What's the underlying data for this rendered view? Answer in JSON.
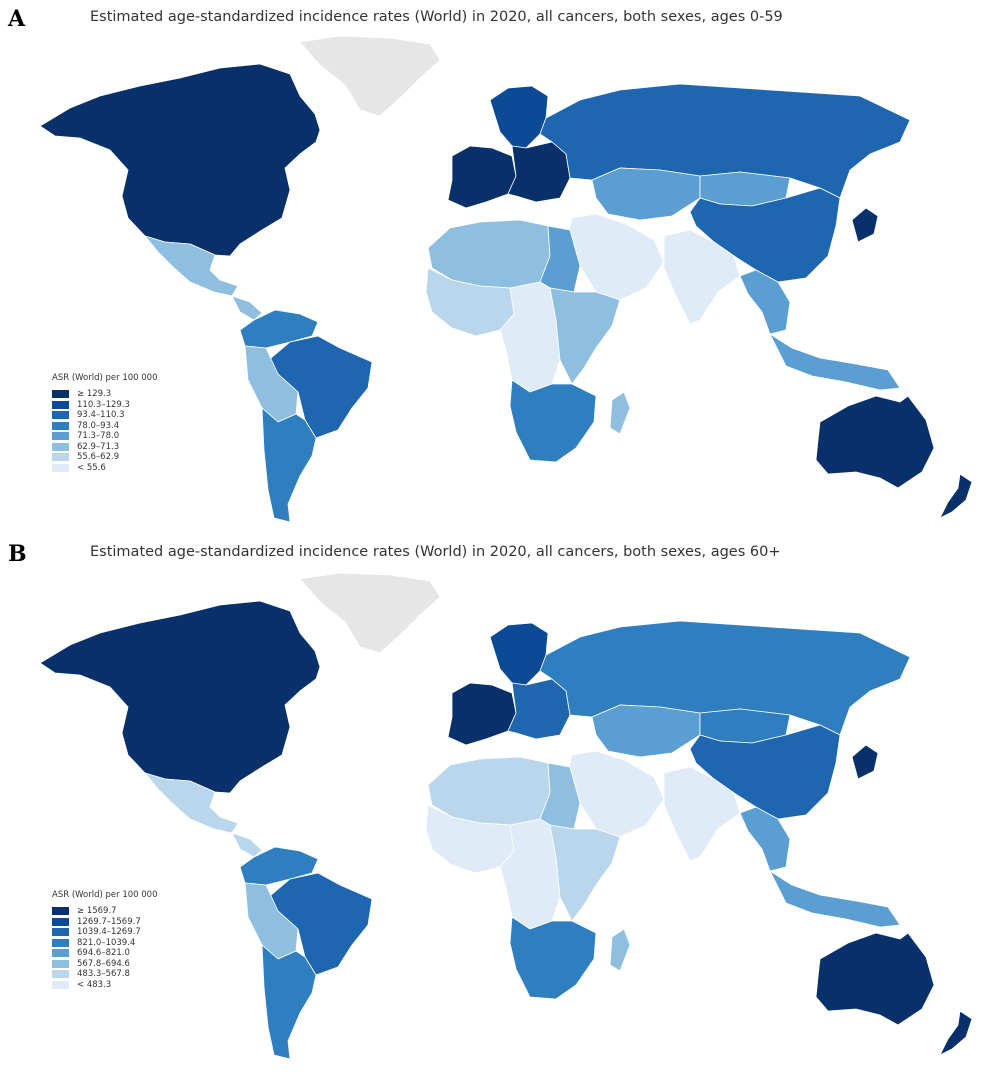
{
  "panels": [
    {
      "label": "A",
      "title": "Estimated age-standardized incidence rates (World) in 2020, all cancers, both sexes, ages 0-59",
      "legend_title": "ASR (World) per 100 000",
      "legend": [
        {
          "label": "≥ 129.3",
          "color": "#08306b"
        },
        {
          "label": "110.3–129.3",
          "color": "#0c4a95"
        },
        {
          "label": "93.4–110.3",
          "color": "#1f66b0"
        },
        {
          "label": "78.0–93.4",
          "color": "#2f7ec0"
        },
        {
          "label": "71.3–78.0",
          "color": "#5a9ed2"
        },
        {
          "label": "62.9–71.3",
          "color": "#8fbfe0"
        },
        {
          "label": "55.6–62.9",
          "color": "#bad6ed"
        },
        {
          "label": "< 55.6",
          "color": "#dfebf7"
        }
      ],
      "regions": {
        "north_america": "#08306b",
        "greenland": "#e6e6e6",
        "mexico": "#8fbfe0",
        "central_america": "#8fbfe0",
        "south_america_north": "#2f7ec0",
        "brazil": "#1f66b0",
        "bolivia": "#8fbfe0",
        "argentina": "#2f7ec0",
        "western_europe": "#08306b",
        "scandinavia": "#0c4a95",
        "eastern_europe": "#08306b",
        "russia": "#1f66b0",
        "north_africa": "#8fbfe0",
        "egypt": "#5a9ed2",
        "west_africa": "#bad6ed",
        "central_africa": "#dfebf7",
        "east_africa": "#8fbfe0",
        "southern_africa": "#2f7ec0",
        "madagascar": "#8fbfe0",
        "middle_east": "#dfebf7",
        "central_asia": "#5a9ed2",
        "mongolia": "#5a9ed2",
        "india": "#dfebf7",
        "china": "#1f66b0",
        "japan": "#08306b",
        "southeast_asia": "#5a9ed2",
        "indonesia": "#5a9ed2",
        "australia": "#08306b",
        "new_zealand": "#08306b"
      }
    },
    {
      "label": "B",
      "title": "Estimated age-standardized incidence rates (World) in 2020, all cancers, both sexes, ages 60+",
      "legend_title": "ASR (World) per 100 000",
      "legend": [
        {
          "label": "≥ 1569.7",
          "color": "#08306b"
        },
        {
          "label": "1269.7–1569.7",
          "color": "#0c4a95"
        },
        {
          "label": "1039.4–1269.7",
          "color": "#1f66b0"
        },
        {
          "label": "821.0–1039.4",
          "color": "#2f7ec0"
        },
        {
          "label": "694.6–821.0",
          "color": "#5a9ed2"
        },
        {
          "label": "567.8–694.6",
          "color": "#8fbfe0"
        },
        {
          "label": "483.3–567.8",
          "color": "#bad6ed"
        },
        {
          "label": "< 483.3",
          "color": "#dfebf7"
        }
      ],
      "regions": {
        "north_america": "#08306b",
        "greenland": "#e6e6e6",
        "mexico": "#bad6ed",
        "central_america": "#bad6ed",
        "south_america_north": "#2f7ec0",
        "brazil": "#1f66b0",
        "bolivia": "#8fbfe0",
        "argentina": "#2f7ec0",
        "western_europe": "#08306b",
        "scandinavia": "#0c4a95",
        "eastern_europe": "#1f66b0",
        "russia": "#2f7ec0",
        "north_africa": "#bad6ed",
        "egypt": "#8fbfe0",
        "west_africa": "#dfebf7",
        "central_africa": "#dfebf7",
        "east_africa": "#bad6ed",
        "southern_africa": "#2f7ec0",
        "madagascar": "#8fbfe0",
        "middle_east": "#dfebf7",
        "central_asia": "#5a9ed2",
        "mongolia": "#2f7ec0",
        "india": "#dfebf7",
        "china": "#1f66b0",
        "japan": "#08306b",
        "southeast_asia": "#5a9ed2",
        "indonesia": "#5a9ed2",
        "australia": "#08306b",
        "new_zealand": "#08306b"
      }
    }
  ]
}
